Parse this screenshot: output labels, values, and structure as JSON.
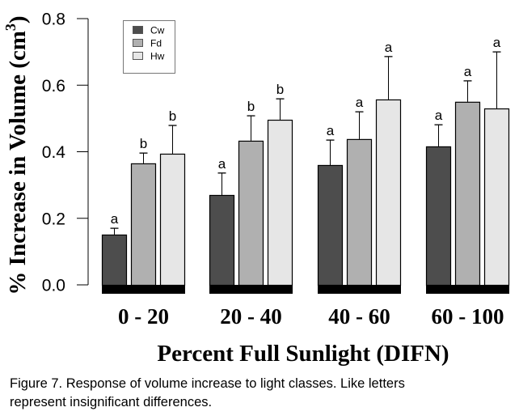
{
  "chart_data": {
    "type": "bar",
    "title": "",
    "xlabel": "Percent Full Sunlight (DIFN)",
    "ylabel": "% Increase in Volume (cm",
    "ylabel_superscript": "3",
    "ylabel_suffix": ")",
    "ylim": [
      0,
      0.8
    ],
    "yticks": [
      0.0,
      0.2,
      0.4,
      0.6,
      0.8
    ],
    "ytick_labels": [
      "0.0",
      "0.2",
      "0.4",
      "0.6",
      "0.8"
    ],
    "categories": [
      "0 - 20",
      "20 - 40",
      "40 - 60",
      "60 - 100"
    ],
    "legend_position": "top-left",
    "grid": false,
    "series": [
      {
        "name": "Cw",
        "color": "#4d4d4d",
        "values": [
          0.151,
          0.27,
          0.36,
          0.416
        ],
        "error_upper": [
          0.17,
          0.336,
          0.435,
          0.481
        ],
        "letters": [
          "a",
          "a",
          "a",
          "a"
        ]
      },
      {
        "name": "Fd",
        "color": "#b0b0b0",
        "values": [
          0.365,
          0.433,
          0.438,
          0.55
        ],
        "error_upper": [
          0.396,
          0.508,
          0.52,
          0.613
        ],
        "letters": [
          "b",
          "b",
          "a",
          "a"
        ]
      },
      {
        "name": "Hw",
        "color": "#e6e6e6",
        "values": [
          0.394,
          0.496,
          0.557,
          0.53
        ],
        "error_upper": [
          0.479,
          0.559,
          0.686,
          0.7
        ],
        "letters": [
          "b",
          "b",
          "a",
          "a"
        ]
      }
    ]
  },
  "caption": {
    "line1": "Figure 7. Response of volume increase to light classes. Like letters",
    "line2": "represent insignificant differences."
  }
}
